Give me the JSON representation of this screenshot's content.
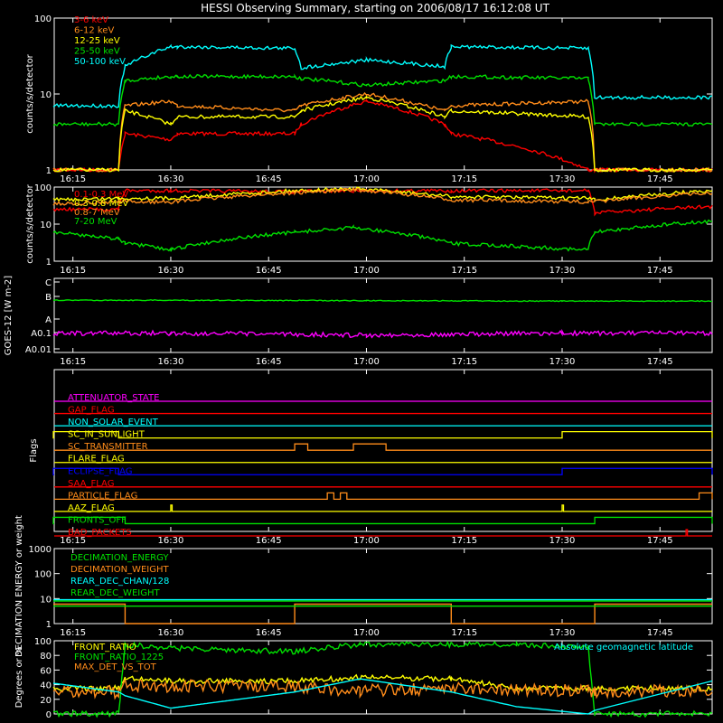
{
  "title": "HESSI Observing Summary, starting on 2006/08/17 16:12:08 UT",
  "time_axis": {
    "start": "16:12:08",
    "end": "17:53:00",
    "ticks": [
      "16:15",
      "16:30",
      "16:45",
      "17:00",
      "17:15",
      "17:30",
      "17:45"
    ]
  },
  "colors": {
    "red": "#ff0000",
    "orange": "#ff8c1a",
    "yellow": "#ffff00",
    "green": "#00e000",
    "cyan": "#00ffff",
    "magenta": "#ff00ff",
    "blue": "#0000ff",
    "white": "#ffffff"
  },
  "chart_data": [
    {
      "type": "line",
      "panel": "count_rates_low",
      "ylabel": "counts/s/detector",
      "yscale": "log",
      "ylim": [
        1,
        100
      ],
      "yticks": [
        "1",
        "10",
        "100"
      ],
      "x": [
        "16:12",
        "16:22",
        "16:23",
        "16:30",
        "16:31",
        "16:49",
        "16:50",
        "17:00",
        "17:12",
        "17:13",
        "17:34",
        "17:35",
        "17:53"
      ],
      "series": [
        {
          "name": "3-6 keV",
          "color": "red",
          "values": [
            1,
            1,
            3,
            2.5,
            3,
            3,
            4,
            8,
            4,
            3,
            1,
            1,
            1
          ]
        },
        {
          "name": "6-12 keV",
          "color": "orange",
          "values": [
            1,
            1,
            7,
            8,
            7,
            6,
            7,
            10,
            6,
            7,
            8,
            1,
            1
          ]
        },
        {
          "name": "12-25 keV",
          "color": "yellow",
          "values": [
            1,
            1,
            6,
            4,
            5,
            5,
            6,
            9,
            5,
            6,
            5,
            1,
            1
          ]
        },
        {
          "name": "25-50 keV",
          "color": "green",
          "values": [
            4,
            4,
            15,
            17,
            17,
            17,
            16,
            13,
            15,
            17,
            16,
            4,
            4
          ]
        },
        {
          "name": "50-100 keV",
          "color": "cyan",
          "values": [
            7,
            7,
            23,
            42,
            42,
            40,
            22,
            28,
            23,
            42,
            40,
            9,
            9
          ]
        }
      ]
    },
    {
      "type": "line",
      "panel": "count_rates_high",
      "ylabel": "counts/s/detector",
      "yscale": "log",
      "ylim": [
        1,
        100
      ],
      "yticks": [
        "1",
        "10",
        "100"
      ],
      "x": [
        "16:12",
        "16:22",
        "16:23",
        "16:30",
        "16:49",
        "16:58",
        "17:13",
        "17:34",
        "17:35",
        "17:53"
      ],
      "series": [
        {
          "name": "0.1-0.3 MeV",
          "color": "red",
          "values": [
            25,
            25,
            80,
            80,
            75,
            80,
            80,
            80,
            20,
            30
          ]
        },
        {
          "name": "0.3-0.8 MeV",
          "color": "yellow",
          "values": [
            45,
            50,
            50,
            50,
            80,
            90,
            55,
            50,
            45,
            80
          ]
        },
        {
          "name": "0.8-7 MeV",
          "color": "orange",
          "values": [
            35,
            40,
            40,
            40,
            70,
            85,
            45,
            40,
            40,
            70
          ]
        },
        {
          "name": "7-20 MeV",
          "color": "green",
          "values": [
            6,
            4,
            3,
            2,
            6,
            8,
            3,
            2,
            6,
            12
          ]
        }
      ]
    },
    {
      "type": "line",
      "panel": "goes",
      "ylabel": "GOES-12 [W m-2]",
      "yscale": "log",
      "ytick_labels": [
        "A0.01",
        "A0.1",
        "A",
        "B",
        "C"
      ],
      "x": [
        "16:12",
        "16:30",
        "17:00",
        "17:30",
        "17:53"
      ],
      "series": [
        {
          "name": "GOES long",
          "color": "green",
          "values": [
            1.3e-07,
            1.3e-07,
            1.25e-07,
            1.2e-07,
            1.2e-07
          ]
        },
        {
          "name": "GOES short",
          "color": "magenta",
          "values": [
            6e-09,
            6e-09,
            5e-09,
            6e-09,
            6e-09
          ]
        }
      ]
    },
    {
      "type": "line",
      "panel": "flags",
      "ylabel": "Flags",
      "flags": [
        {
          "label": "ATTENUATOR_STATE",
          "color": "magenta",
          "high": []
        },
        {
          "label": "GAP_FLAG",
          "color": "red",
          "high": []
        },
        {
          "label": "NON_SOLAR_EVENT",
          "color": "cyan",
          "high": []
        },
        {
          "label": "SC_IN_SUNLIGHT",
          "color": "yellow",
          "high": [
            [
              "16:12",
              "16:22"
            ],
            [
              "17:30",
              "17:53"
            ]
          ]
        },
        {
          "label": "SC_TRANSMITTER",
          "color": "orange",
          "high": [
            [
              "16:49",
              "16:51"
            ],
            [
              "16:58",
              "17:03"
            ]
          ]
        },
        {
          "label": "FLARE_FLAG",
          "color": "yellow",
          "high": []
        },
        {
          "label": "ECLIPSE_FLAG",
          "color": "blue",
          "high": [
            [
              "16:12",
              "16:22"
            ],
            [
              "17:30",
              "17:53"
            ]
          ]
        },
        {
          "label": "SAA_FLAG",
          "color": "red",
          "high": []
        },
        {
          "label": "PARTICLE_FLAG",
          "color": "orange",
          "high": [
            [
              "16:54",
              "16:55"
            ],
            [
              "16:56",
              "16:57"
            ],
            [
              "17:51",
              "17:53"
            ]
          ]
        },
        {
          "label": "AAZ_FLAG",
          "color": "yellow",
          "high": [
            [
              "16:30",
              "16:30"
            ],
            [
              "17:30",
              "17:30"
            ]
          ]
        },
        {
          "label": "FRONTS_OFF",
          "color": "green",
          "high": [
            [
              "16:12",
              "16:23"
            ],
            [
              "17:35",
              "17:53"
            ]
          ]
        },
        {
          "label": "BAD_PACKETS",
          "color": "red",
          "high": [
            [
              "17:49",
              "17:49"
            ]
          ]
        }
      ]
    },
    {
      "type": "line",
      "panel": "decimation",
      "ylabel": "DECIMATION ENERGY or weight",
      "yscale": "log",
      "ylim": [
        1,
        1000
      ],
      "yticks": [
        "1",
        "10",
        "100",
        "1000"
      ],
      "x": [
        "16:12",
        "16:23",
        "16:30",
        "16:49",
        "17:13",
        "17:34",
        "17:35",
        "17:53"
      ],
      "series": [
        {
          "name": "DECIMATION_ENERGY",
          "color": "green",
          "values": [
            8,
            8,
            8,
            8,
            8,
            8,
            8,
            8
          ]
        },
        {
          "name": "DECIMATION_WEIGHT",
          "color": "orange",
          "values": [
            6,
            1,
            1,
            6,
            1,
            1,
            6,
            6
          ]
        },
        {
          "name": "REAR_DEC_CHAN/128",
          "color": "cyan",
          "values": [
            9,
            9,
            9,
            9,
            9,
            9,
            9,
            9
          ]
        },
        {
          "name": "REAR_DEC_WEIGHT",
          "color": "green",
          "values": [
            5,
            5,
            5,
            5,
            5,
            5,
            5,
            5
          ]
        }
      ]
    },
    {
      "type": "line",
      "panel": "ratios",
      "ylabel": "Degrees or %",
      "ylim": [
        0,
        100
      ],
      "yticks": [
        "0",
        "20",
        "40",
        "60",
        "80",
        "100"
      ],
      "annotation": "Absolute geomagnetic latitude",
      "x": [
        "16:12",
        "16:22",
        "16:23",
        "16:30",
        "16:49",
        "16:59",
        "17:13",
        "17:23",
        "17:34",
        "17:35",
        "17:53"
      ],
      "series": [
        {
          "name": "FRONT_RATIO",
          "color": "yellow",
          "values": [
            35,
            35,
            50,
            45,
            45,
            50,
            48,
            35,
            35,
            35,
            35
          ]
        },
        {
          "name": "FRONT_RATIO_1225",
          "color": "green",
          "values": [
            0,
            0,
            95,
            90,
            85,
            95,
            95,
            95,
            90,
            0,
            0
          ]
        },
        {
          "name": "MAX_DET_VS_TOT",
          "color": "orange",
          "values": [
            32,
            30,
            40,
            38,
            37,
            32,
            35,
            33,
            32,
            30,
            33
          ]
        },
        {
          "name": "Absolute geomagnetic latitude",
          "color": "cyan",
          "values": [
            42,
            30,
            25,
            8,
            30,
            48,
            30,
            10,
            0,
            5,
            45
          ]
        }
      ]
    }
  ]
}
